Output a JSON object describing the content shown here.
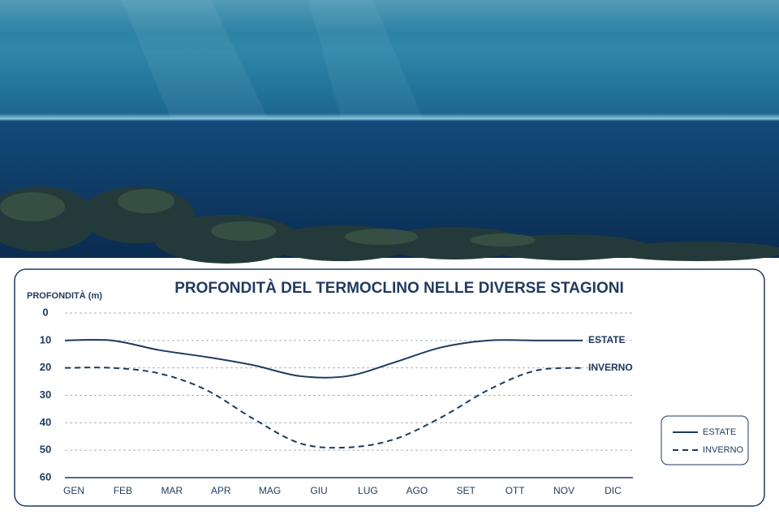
{
  "chart_data": {
    "type": "line",
    "title": "PROFONDITÀ DEL TERMOCLINO NELLE DIVERSE STAGIONI",
    "y_label": "PROFONDITÀ (m)",
    "categories": [
      "GEN",
      "FEB",
      "MAR",
      "APR",
      "MAG",
      "GIU",
      "LUG",
      "AGO",
      "SET",
      "OTT",
      "NOV",
      "DIC"
    ],
    "series": [
      {
        "name": "ESTATE",
        "color": "#1f3a5f",
        "dash": false,
        "values": [
          10,
          10,
          13.5,
          16,
          19,
          23,
          23,
          18,
          12.5,
          10,
          10,
          10
        ]
      },
      {
        "name": "INVERNO",
        "color": "#1f3a5f",
        "dash": true,
        "values": [
          20,
          20,
          22,
          28,
          38.5,
          47.5,
          49,
          46,
          38,
          28,
          21,
          20
        ]
      }
    ],
    "ylim": [
      0,
      60
    ],
    "yticks": [
      0,
      10,
      20,
      30,
      40,
      50,
      60
    ],
    "y_inverted": true,
    "grid": true,
    "legend": "right"
  }
}
